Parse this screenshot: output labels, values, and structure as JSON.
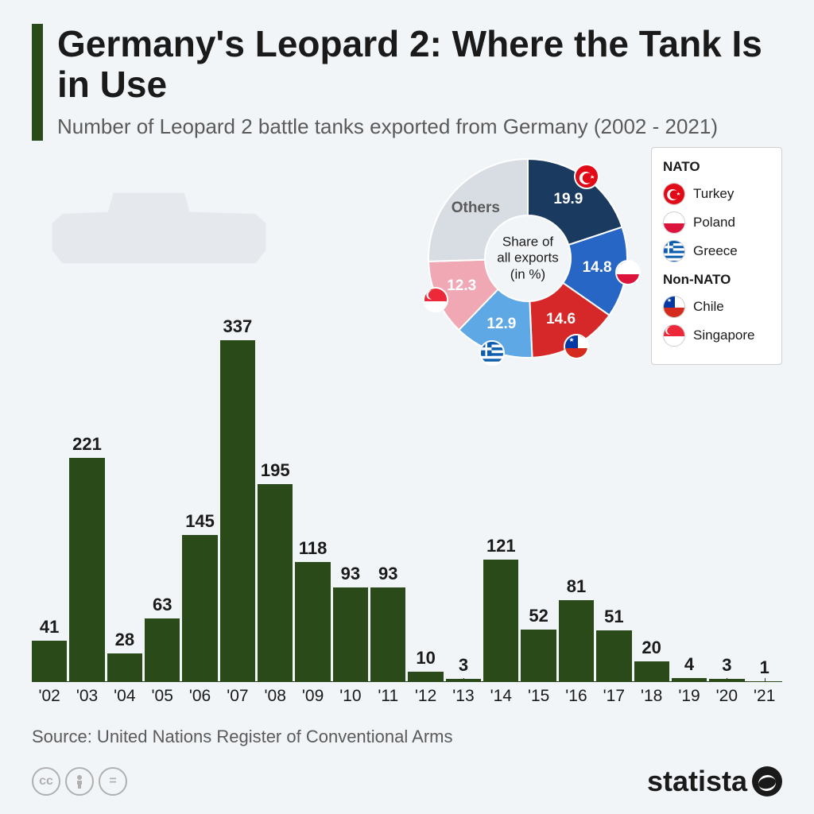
{
  "title": "Germany's Leopard 2: Where the Tank Is in Use",
  "subtitle": "Number of Leopard 2 battle tanks exported from Germany (2002 - 2021)",
  "bar_chart": {
    "type": "bar",
    "bar_color": "#2a4a1a",
    "background_color": "#f2f5f8",
    "max_value": 337,
    "label_fontsize": 22,
    "xtick_fontsize": 21,
    "years": [
      "'02",
      "'03",
      "'04",
      "'05",
      "'06",
      "'07",
      "'08",
      "'09",
      "'10",
      "'11",
      "'12",
      "'13",
      "'14",
      "'15",
      "'16",
      "'17",
      "'18",
      "'19",
      "'20",
      "'21"
    ],
    "values": [
      41,
      221,
      28,
      63,
      145,
      337,
      195,
      118,
      93,
      93,
      10,
      3,
      121,
      52,
      81,
      51,
      20,
      4,
      3,
      1
    ]
  },
  "donut": {
    "center_label_1": "Share of",
    "center_label_2": "all exports",
    "center_label_3": "(in %)",
    "inner_radius": 54,
    "outer_radius": 125,
    "slices": [
      {
        "name": "Turkey",
        "value": 19.9,
        "color": "#1a3a5f",
        "flag": "turkey"
      },
      {
        "name": "Poland",
        "value": 14.8,
        "color": "#2766c4",
        "flag": "poland"
      },
      {
        "name": "Chile",
        "value": 14.6,
        "color": "#d62828",
        "flag": "chile"
      },
      {
        "name": "Greece",
        "value": 12.9,
        "color": "#5fa8e6",
        "flag": "greece"
      },
      {
        "name": "Singapore",
        "value": 12.3,
        "color": "#f0a8b5",
        "flag": "singapore"
      },
      {
        "name": "Others",
        "value": 25.5,
        "color": "#d8dde3",
        "flag": null
      }
    ]
  },
  "legend": {
    "groups": [
      {
        "heading": "NATO",
        "items": [
          {
            "name": "Turkey",
            "flag": "turkey"
          },
          {
            "name": "Poland",
            "flag": "poland"
          },
          {
            "name": "Greece",
            "flag": "greece"
          }
        ]
      },
      {
        "heading": "Non-NATO",
        "items": [
          {
            "name": "Chile",
            "flag": "chile"
          },
          {
            "name": "Singapore",
            "flag": "singapore"
          }
        ]
      }
    ]
  },
  "flags": {
    "turkey": {
      "bg": "#e30a17",
      "symbol_color": "#ffffff",
      "type": "crescent"
    },
    "poland": {
      "top": "#ffffff",
      "bottom": "#dc143c"
    },
    "greece": {
      "stripes": [
        "#0d5eaf",
        "#ffffff"
      ],
      "type": "greece"
    },
    "chile": {
      "top_left": "#0039a6",
      "top_right": "#ffffff",
      "bottom": "#d52b1e",
      "star": "#ffffff"
    },
    "singapore": {
      "top": "#ed2939",
      "bottom": "#ffffff",
      "symbol_color": "#ffffff"
    }
  },
  "source": "Source: United Nations Register of Conventional Arms",
  "brand": "statista",
  "cc": [
    "cc",
    "by",
    "nd"
  ]
}
